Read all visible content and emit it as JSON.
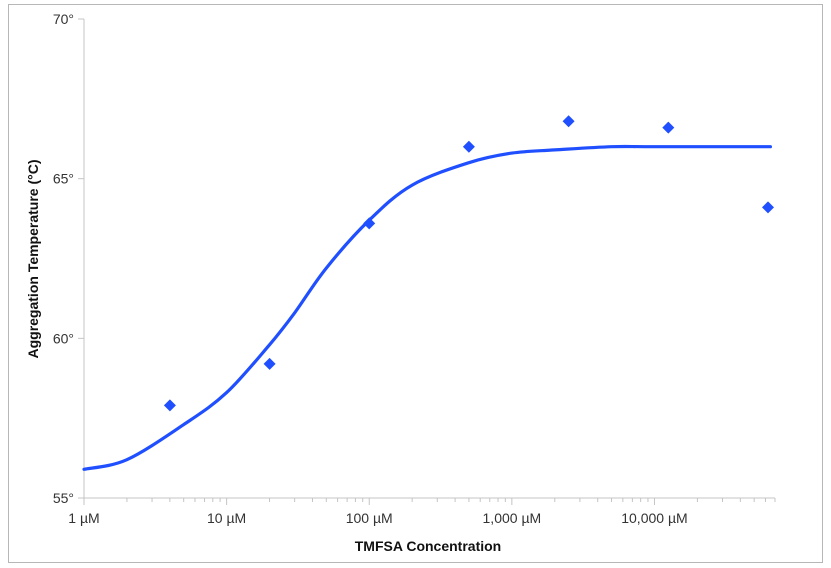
{
  "chart_data": {
    "type": "scatter",
    "title": "",
    "xlabel": "TMFSA Concentration",
    "ylabel": "Aggregation Temperature (°C)",
    "x_scale": "log",
    "xlim": [
      1,
      70000
    ],
    "ylim": [
      55,
      70
    ],
    "x_ticks": [
      {
        "value": 1,
        "label": "1 µM"
      },
      {
        "value": 10,
        "label": "10 µM"
      },
      {
        "value": 100,
        "label": "100 µM"
      },
      {
        "value": 1000,
        "label": "1,000 µM"
      },
      {
        "value": 10000,
        "label": "10,000 µM"
      }
    ],
    "y_ticks": [
      {
        "value": 55,
        "label": "55°"
      },
      {
        "value": 60,
        "label": "60°"
      },
      {
        "value": 65,
        "label": "65°"
      },
      {
        "value": 70,
        "label": "70°"
      }
    ],
    "grid": false,
    "series": [
      {
        "kind": "points",
        "marker": "diamond",
        "color": "#1f4fff",
        "x": [
          4,
          20,
          100,
          500,
          2500,
          12500,
          62500
        ],
        "y": [
          57.9,
          59.2,
          63.6,
          66.0,
          66.8,
          66.6,
          64.1
        ]
      },
      {
        "kind": "fitted-curve",
        "color": "#1f4fff",
        "x": [
          1,
          2,
          5,
          10,
          20,
          30,
          50,
          100,
          200,
          500,
          1000,
          2000,
          5000,
          10000,
          65000
        ],
        "y": [
          55.9,
          56.2,
          57.3,
          58.3,
          59.8,
          60.8,
          62.2,
          63.7,
          64.8,
          65.5,
          65.8,
          65.9,
          66.0,
          66.0,
          66.0
        ]
      }
    ]
  }
}
